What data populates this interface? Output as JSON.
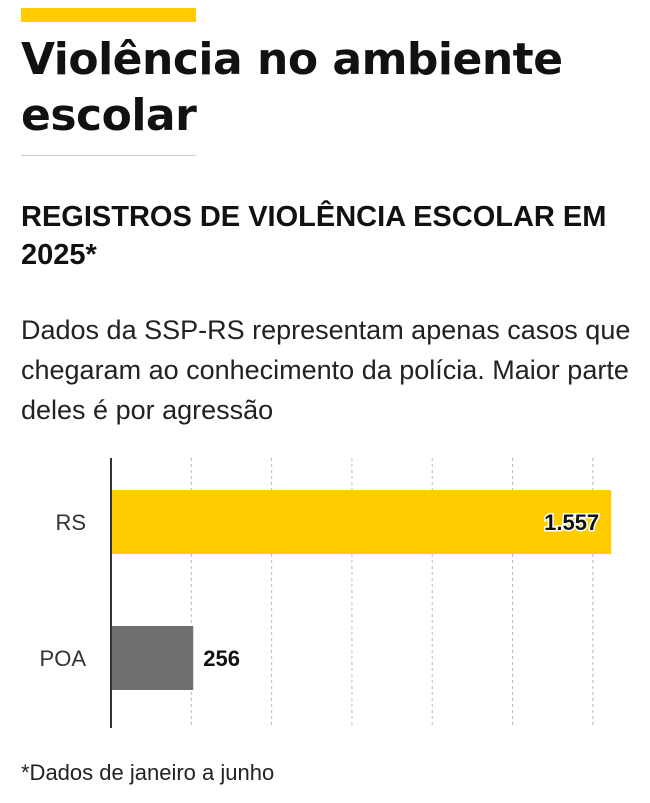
{
  "page": {
    "title": "Violência no ambiente escolar"
  },
  "chart_data": {
    "type": "bar",
    "orientation": "horizontal",
    "title": "REGISTROS DE VIOLÊNCIA ESCOLAR EM 2025*",
    "subtitle": "Dados da SSP-RS representam apenas casos que chegaram ao conhecimento da polícia. Maior parte deles é por agressão",
    "categories": [
      "RS",
      "POA"
    ],
    "values": [
      1557,
      256
    ],
    "value_labels": [
      "1.557",
      "256"
    ],
    "bar_colors": [
      "#ffcc00",
      "#707070"
    ],
    "xlim": [
      0,
      1600
    ],
    "grid": true,
    "footnote": "*Dados de janeiro a junho"
  },
  "colors": {
    "accent": "#ffcc00",
    "secondary_bar": "#707070",
    "text": "#111111"
  }
}
